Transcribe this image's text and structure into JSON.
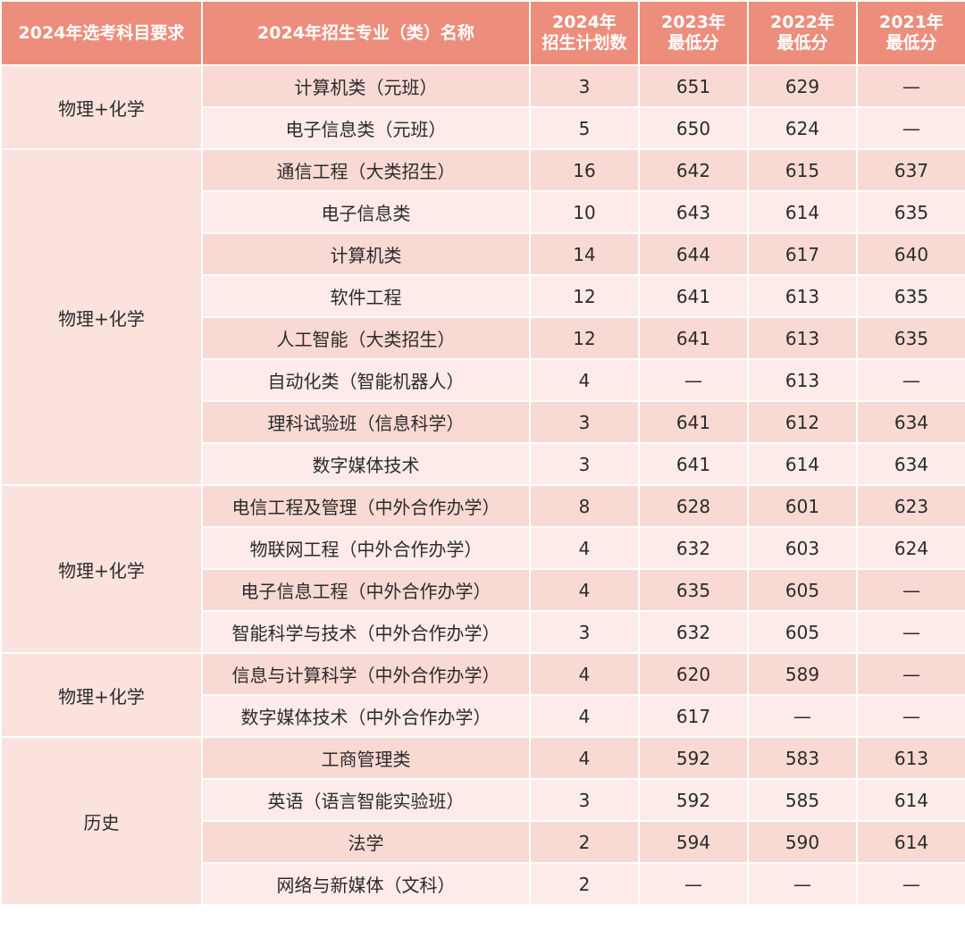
{
  "headers": {
    "subject": "2024年选考科目要求",
    "major": "2024年招生专业（类）名称",
    "plan_line1": "2024年",
    "plan_line2": "招生计划数",
    "s2023_line1": "2023年",
    "s2023_line2": "最低分",
    "s2022_line1": "2022年",
    "s2022_line2": "最低分",
    "s2021_line1": "2021年",
    "s2021_line2": "最低分"
  },
  "groups": [
    {
      "subject": "物理+化学",
      "rows": [
        {
          "major": "计算机类（元班）",
          "plan": "3",
          "s2023": "651",
          "s2022": "629",
          "s2021": "—"
        },
        {
          "major": "电子信息类（元班）",
          "plan": "5",
          "s2023": "650",
          "s2022": "624",
          "s2021": "—"
        }
      ]
    },
    {
      "subject": "物理+化学",
      "rows": [
        {
          "major": "通信工程（大类招生）",
          "plan": "16",
          "s2023": "642",
          "s2022": "615",
          "s2021": "637"
        },
        {
          "major": "电子信息类",
          "plan": "10",
          "s2023": "643",
          "s2022": "614",
          "s2021": "635"
        },
        {
          "major": "计算机类",
          "plan": "14",
          "s2023": "644",
          "s2022": "617",
          "s2021": "640"
        },
        {
          "major": "软件工程",
          "plan": "12",
          "s2023": "641",
          "s2022": "613",
          "s2021": "635"
        },
        {
          "major": "人工智能（大类招生）",
          "plan": "12",
          "s2023": "641",
          "s2022": "613",
          "s2021": "635"
        },
        {
          "major": "自动化类（智能机器人）",
          "plan": "4",
          "s2023": "—",
          "s2022": "613",
          "s2021": "—"
        },
        {
          "major": "理科试验班（信息科学）",
          "plan": "3",
          "s2023": "641",
          "s2022": "612",
          "s2021": "634"
        },
        {
          "major": "数字媒体技术",
          "plan": "3",
          "s2023": "641",
          "s2022": "614",
          "s2021": "634"
        }
      ]
    },
    {
      "subject": "物理+化学",
      "rows": [
        {
          "major": "电信工程及管理（中外合作办学）",
          "plan": "8",
          "s2023": "628",
          "s2022": "601",
          "s2021": "623"
        },
        {
          "major": "物联网工程（中外合作办学）",
          "plan": "4",
          "s2023": "632",
          "s2022": "603",
          "s2021": "624"
        },
        {
          "major": "电子信息工程（中外合作办学）",
          "plan": "4",
          "s2023": "635",
          "s2022": "605",
          "s2021": "—"
        },
        {
          "major": "智能科学与技术（中外合作办学）",
          "plan": "3",
          "s2023": "632",
          "s2022": "605",
          "s2021": "—"
        }
      ]
    },
    {
      "subject": "物理+化学",
      "rows": [
        {
          "major": "信息与计算科学（中外合作办学）",
          "plan": "4",
          "s2023": "620",
          "s2022": "589",
          "s2021": "—"
        },
        {
          "major": "数字媒体技术（中外合作办学）",
          "plan": "4",
          "s2023": "617",
          "s2022": "—",
          "s2021": "—"
        }
      ]
    },
    {
      "subject": "历史",
      "rows": [
        {
          "major": "工商管理类",
          "plan": "4",
          "s2023": "592",
          "s2022": "583",
          "s2021": "613"
        },
        {
          "major": "英语（语言智能实验班）",
          "plan": "3",
          "s2023": "592",
          "s2022": "585",
          "s2021": "614"
        },
        {
          "major": "法学",
          "plan": "2",
          "s2023": "594",
          "s2022": "590",
          "s2021": "614"
        },
        {
          "major": "网络与新媒体（文科）",
          "plan": "2",
          "s2023": "—",
          "s2022": "—",
          "s2021": "—"
        }
      ]
    }
  ]
}
